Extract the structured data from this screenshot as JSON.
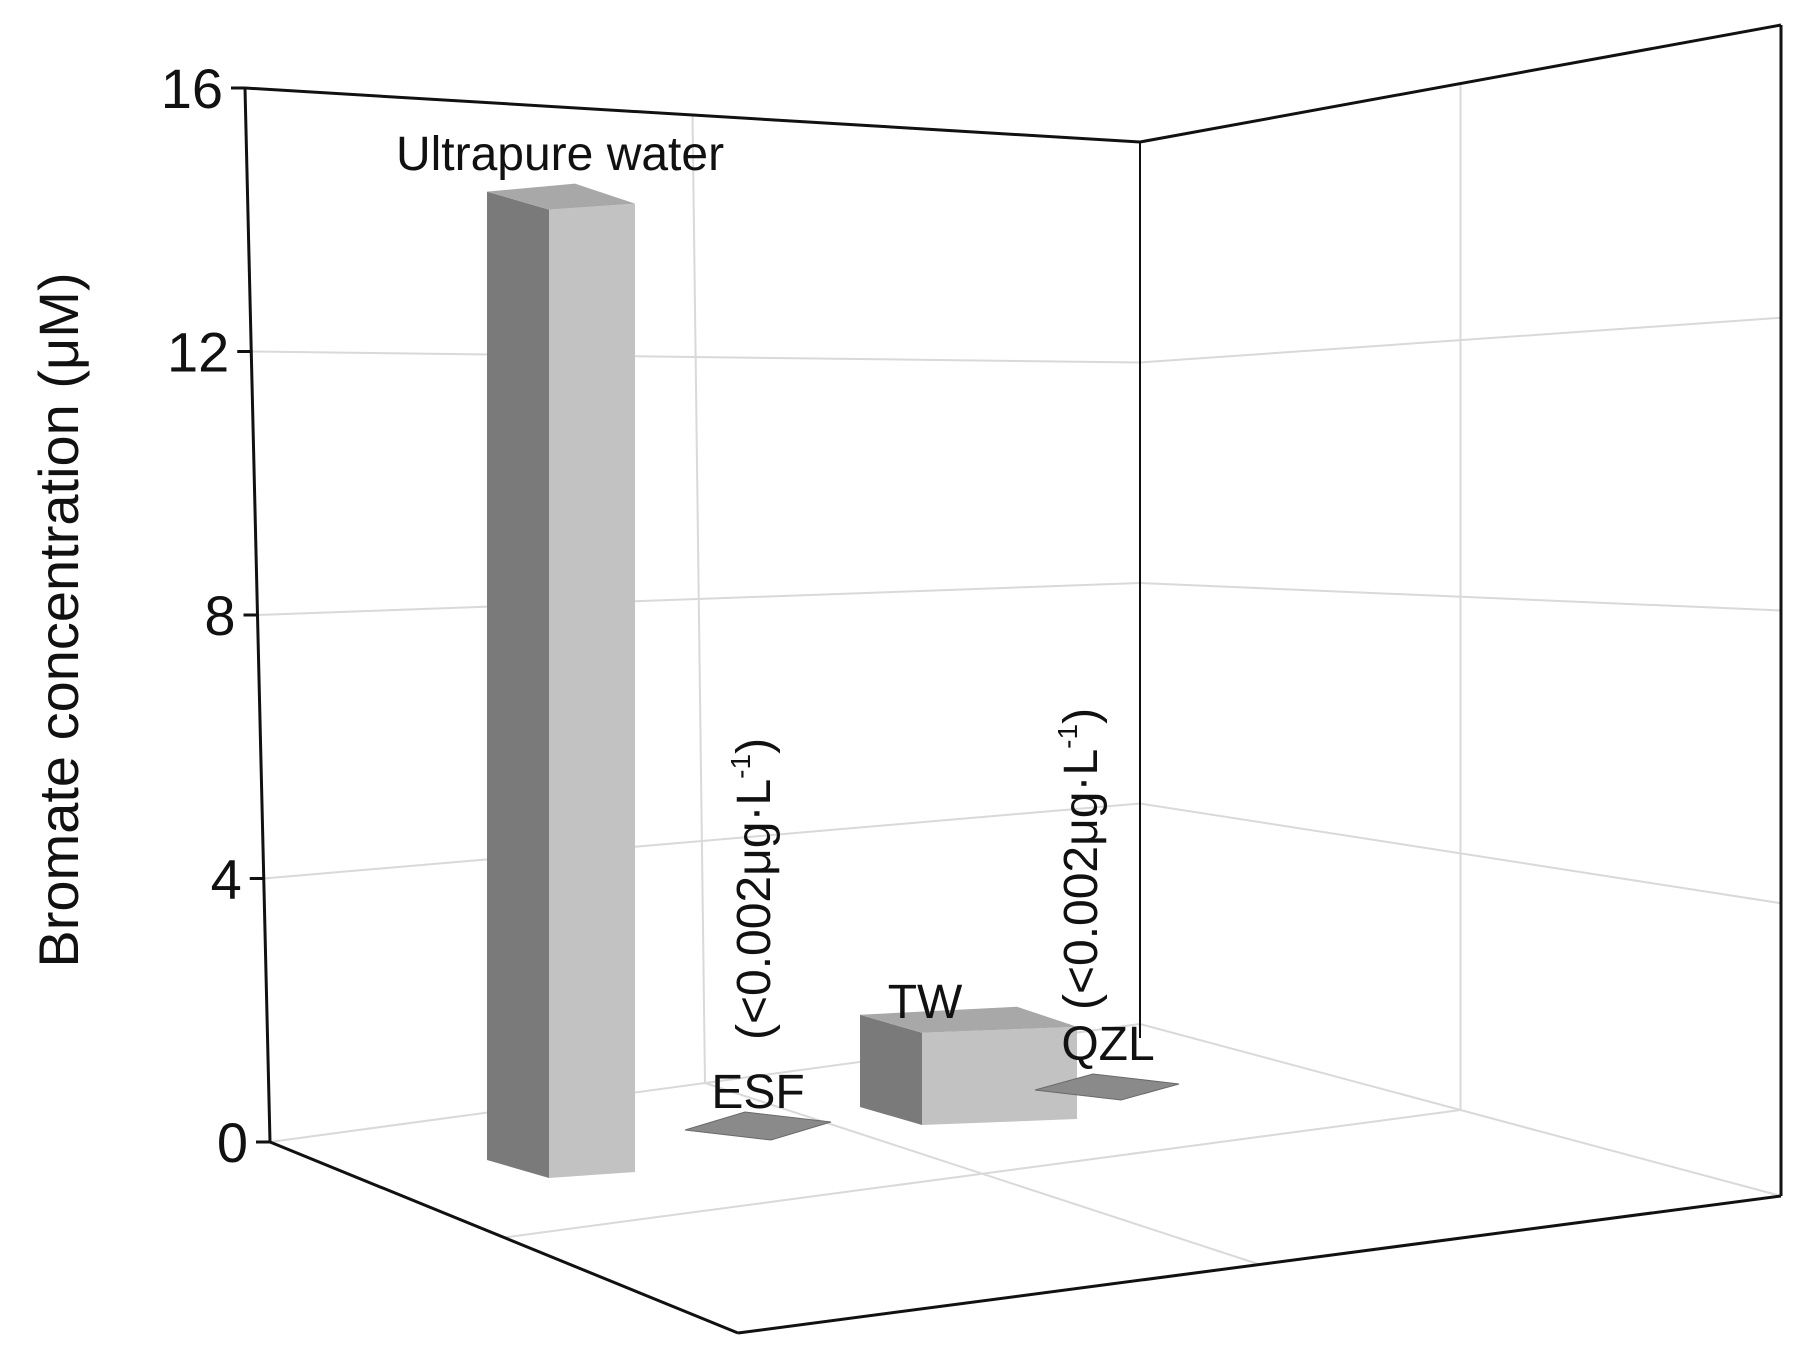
{
  "chart_data": {
    "type": "bar",
    "ylabel": "Bromate concentration (μM)",
    "ylim": [
      0,
      16
    ],
    "y_ticks": [
      "0",
      "4",
      "8",
      "12",
      "16"
    ],
    "categories": [
      "Ultrapure water",
      "ESF",
      "TW",
      "QZL"
    ],
    "values": [
      14.7,
      0,
      1.4,
      0
    ],
    "notes": {
      "ESF": {
        "text": "(<0.002μg·L",
        "sup": "-1",
        "close": ")"
      },
      "QZL": {
        "text": "(<0.002μg·L",
        "sup": "-1",
        "close": ")"
      }
    },
    "grid": true,
    "colors": {
      "bar_front": "#c2c2c2",
      "bar_side": "#7a7a7a",
      "bar_top": "#a8a8a8",
      "box_line": "#111111",
      "grid_line": "#d9d9d9"
    }
  }
}
